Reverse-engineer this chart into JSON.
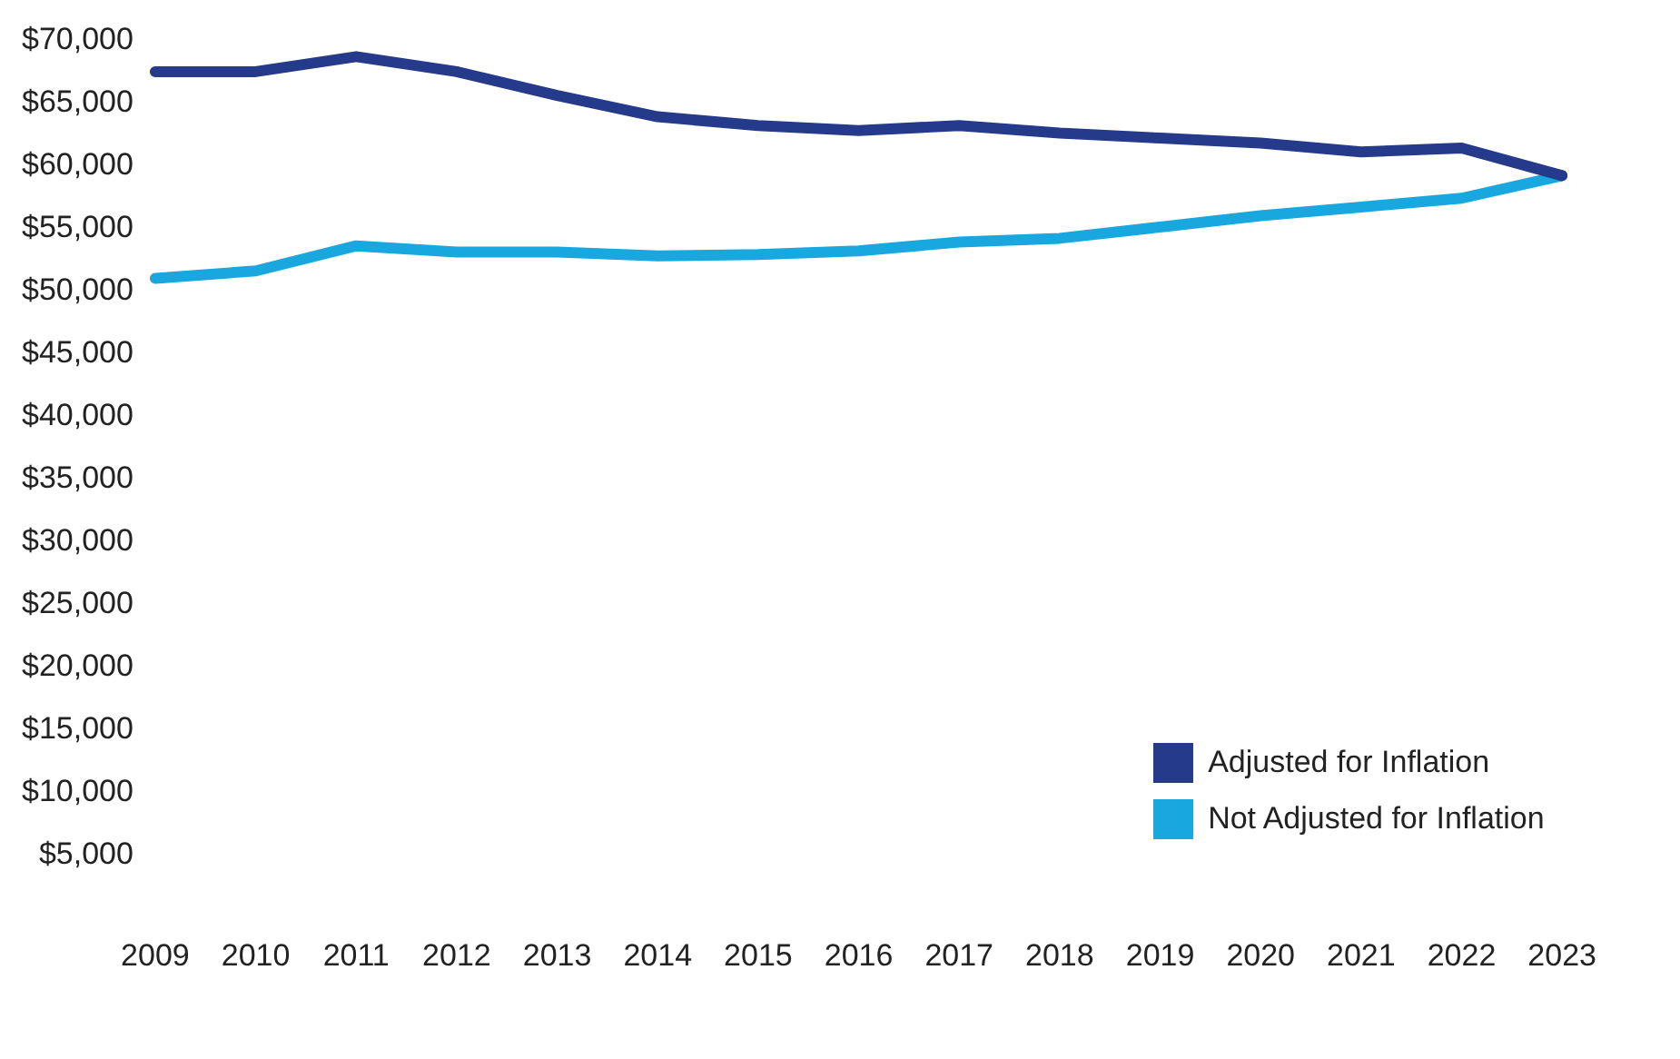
{
  "chart_data": {
    "type": "line",
    "categories": [
      "2009",
      "2010",
      "2011",
      "2012",
      "2013",
      "2014",
      "2015",
      "2016",
      "2017",
      "2018",
      "2019",
      "2020",
      "2021",
      "2022",
      "2023"
    ],
    "series": [
      {
        "name": "Adjusted for Inflation",
        "color": "#253a8a",
        "values": [
          67500,
          67500,
          68700,
          67500,
          65600,
          63900,
          63200,
          62800,
          63200,
          62600,
          62200,
          61800,
          61100,
          61400,
          59200
        ]
      },
      {
        "name": "Not Adjusted for Inflation",
        "color": "#19a7e0",
        "values": [
          51000,
          51600,
          53600,
          53100,
          53100,
          52800,
          52900,
          53200,
          53900,
          54200,
          55100,
          56000,
          56700,
          57400,
          59200
        ]
      }
    ],
    "ylim": [
      5000,
      70000
    ],
    "yticks": [
      {
        "value": 5000,
        "label": "$5,000"
      },
      {
        "value": 10000,
        "label": "$10,000"
      },
      {
        "value": 15000,
        "label": "$15,000"
      },
      {
        "value": 20000,
        "label": "$20,000"
      },
      {
        "value": 25000,
        "label": "$25,000"
      },
      {
        "value": 30000,
        "label": "$30,000"
      },
      {
        "value": 35000,
        "label": "$35,000"
      },
      {
        "value": 40000,
        "label": "$40,000"
      },
      {
        "value": 45000,
        "label": "$45,000"
      },
      {
        "value": 50000,
        "label": "$50,000"
      },
      {
        "value": 55000,
        "label": "$55,000"
      },
      {
        "value": 60000,
        "label": "$60,000"
      },
      {
        "value": 65000,
        "label": "$65,000"
      },
      {
        "value": 70000,
        "label": "$70,000"
      }
    ],
    "grid": false,
    "legend": "bottom right",
    "marker": "none",
    "line_style": "solid"
  }
}
